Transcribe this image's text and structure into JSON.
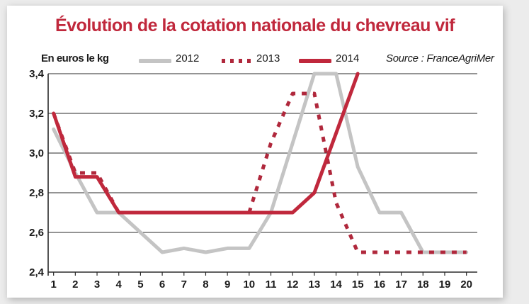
{
  "chart_data": {
    "type": "line",
    "title": "Évolution de la cotation nationale du chevreau vif",
    "ylabel": "En euros le kg",
    "source": "Source : FranceAgriMer",
    "x": [
      1,
      2,
      3,
      4,
      5,
      6,
      7,
      8,
      9,
      10,
      11,
      12,
      13,
      14,
      15,
      16,
      17,
      18,
      19,
      20
    ],
    "ylim": [
      2.4,
      3.4
    ],
    "yticks": [
      "2,4",
      "2,6",
      "2,8",
      "3,0",
      "3,2",
      "3,4"
    ],
    "xticks": [
      "1",
      "2",
      "3",
      "4",
      "5",
      "6",
      "7",
      "8",
      "9",
      "10",
      "11",
      "12",
      "13",
      "14",
      "15",
      "16",
      "17",
      "18",
      "19",
      "20"
    ],
    "grid": true,
    "legend": "top",
    "series": [
      {
        "name": "2012",
        "color": "#c4c4c4",
        "style": "solid",
        "values": [
          3.12,
          2.9,
          2.7,
          2.7,
          2.6,
          2.5,
          2.52,
          2.5,
          2.52,
          2.52,
          2.7,
          3.05,
          3.4,
          3.4,
          2.93,
          2.7,
          2.7,
          2.5,
          2.5,
          2.5
        ]
      },
      {
        "name": "2013",
        "color": "#b0283c",
        "style": "dotted",
        "values": [
          3.2,
          2.9,
          2.9,
          2.7,
          2.7,
          2.7,
          2.7,
          2.7,
          2.7,
          2.7,
          3.05,
          3.3,
          3.3,
          2.75,
          2.5,
          2.5,
          2.5,
          2.5,
          2.5,
          2.5
        ]
      },
      {
        "name": "2014",
        "color": "#c0283c",
        "style": "solid",
        "values": [
          3.2,
          2.88,
          2.88,
          2.7,
          2.7,
          2.7,
          2.7,
          2.7,
          2.7,
          2.7,
          2.7,
          2.7,
          2.8,
          3.1,
          3.4,
          null,
          null,
          null,
          null,
          null
        ]
      }
    ]
  }
}
